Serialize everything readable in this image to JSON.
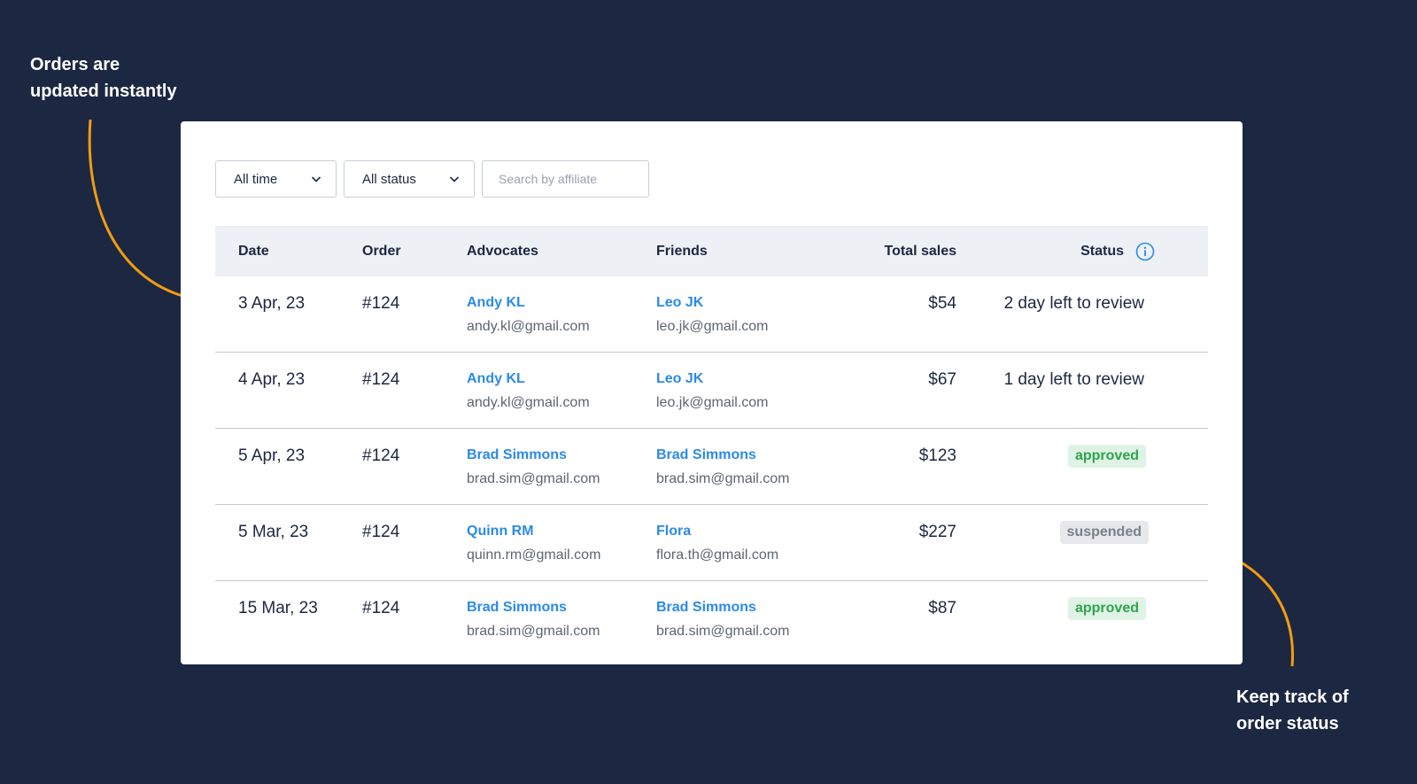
{
  "callouts": {
    "left": [
      "Orders are",
      "updated instantly"
    ],
    "right": [
      "Keep track of",
      "order status"
    ]
  },
  "colors": {
    "background": "#1c2841",
    "accent": "#f39c12",
    "link": "#2b8ae8",
    "approved_bg": "#dff3e4",
    "approved_text": "#2ea44f",
    "suspended_bg": "#e6e8eb",
    "suspended_text": "#7a808a"
  },
  "filters": {
    "time": {
      "value": "All time",
      "icon": "chevron-down-icon"
    },
    "status": {
      "value": "All status",
      "icon": "chevron-down-icon"
    },
    "search": {
      "placeholder": "Search by affiliate",
      "value": ""
    }
  },
  "table": {
    "headers": {
      "date": "Date",
      "order": "Order",
      "advocates": "Advocates",
      "friends": "Friends",
      "total_sales": "Total sales",
      "status": "Status",
      "status_icon": "info-icon"
    },
    "rows": [
      {
        "date": "3 Apr, 23",
        "order": "#124",
        "advocate_name": "Andy KL",
        "advocate_email": "andy.kl@gmail.com",
        "friend_name": "Leo JK",
        "friend_email": "leo.jk@gmail.com",
        "total": "$54",
        "status": "2 day left to review"
      },
      {
        "date": "4 Apr, 23",
        "order": "#124",
        "advocate_name": "Andy KL",
        "advocate_email": "andy.kl@gmail.com",
        "friend_name": "Leo JK",
        "friend_email": "leo.jk@gmail.com",
        "total": "$67",
        "status": "1 day left to review"
      },
      {
        "date": "5 Apr, 23",
        "order": "#124",
        "advocate_name": "Brad Simmons",
        "advocate_email": "brad.sim@gmail.com",
        "friend_name": "Brad Simmons",
        "friend_email": "brad.sim@gmail.com",
        "total": "$123",
        "status": "approved"
      },
      {
        "date": "5 Mar, 23",
        "order": "#124",
        "advocate_name": "Quinn RM",
        "advocate_email": "quinn.rm@gmail.com",
        "friend_name": "Flora",
        "friend_email": "flora.th@gmail.com",
        "total": "$227",
        "status": "suspended"
      },
      {
        "date": "15 Mar, 23",
        "order": "#124",
        "advocate_name": "Brad Simmons",
        "advocate_email": "brad.sim@gmail.com",
        "friend_name": "Brad Simmons",
        "friend_email": "brad.sim@gmail.com",
        "total": "$87",
        "status": "approved"
      }
    ]
  }
}
